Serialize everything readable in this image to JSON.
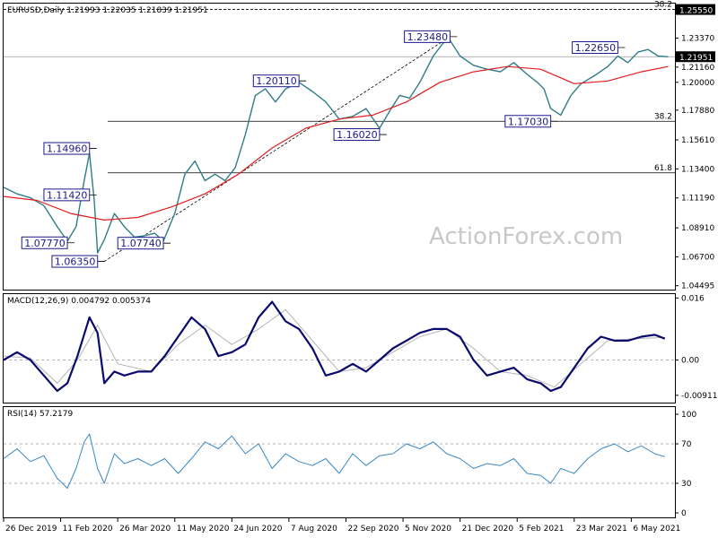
{
  "chart_data": {
    "type": "line",
    "main": {
      "header": "EURUSD,Daily  1.21993 1.22035 1.21839 1.21951",
      "ylim": [
        1.042,
        1.26
      ],
      "yticks": [
        "1.25550",
        "1.23370",
        "1.21160",
        "1.20000",
        "1.17880",
        "1.15610",
        "1.13400",
        "1.11190",
        "1.08910",
        "1.06700",
        "1.04495"
      ],
      "ytick_values": [
        1.2555,
        1.2337,
        1.2116,
        1.2,
        1.1788,
        1.1561,
        1.134,
        1.1119,
        1.0891,
        1.067,
        1.04495
      ],
      "last_price": "1.21951",
      "last_value": 1.21951,
      "level_price": "1.25550",
      "level_value": 1.2555,
      "fib_levels": [
        {
          "label": "38.2",
          "value": 1.2555,
          "start": 0.0
        },
        {
          "label": "38.2",
          "value": 1.1703,
          "start": 0.155
        },
        {
          "label": "61.8",
          "value": 1.131,
          "start": 0.155
        }
      ],
      "annotations": [
        {
          "text": "1.14960",
          "t": 0.128,
          "value": 1.1496,
          "pos": "left"
        },
        {
          "text": "1.11420",
          "t": 0.128,
          "value": 1.1142,
          "pos": "left"
        },
        {
          "text": "1.07770",
          "t": 0.095,
          "value": 1.0777,
          "pos": "left"
        },
        {
          "text": "1.06350",
          "t": 0.14,
          "value": 1.0635,
          "pos": "left"
        },
        {
          "text": "1.07740",
          "t": 0.238,
          "value": 1.0774,
          "pos": "left"
        },
        {
          "text": "1.20110",
          "t": 0.44,
          "value": 1.2011,
          "pos": "left"
        },
        {
          "text": "1.16020",
          "t": 0.56,
          "value": 1.1602,
          "pos": "left"
        },
        {
          "text": "1.23480",
          "t": 0.665,
          "value": 1.2348,
          "pos": "left"
        },
        {
          "text": "1.17030",
          "t": 0.815,
          "value": 1.1703,
          "pos": "left"
        },
        {
          "text": "1.22650",
          "t": 0.915,
          "value": 1.2265,
          "pos": "left"
        }
      ],
      "trendline": {
        "from": {
          "t": 0.15,
          "value": 1.0635
        },
        "to": {
          "t": 0.665,
          "value": 1.2348
        }
      },
      "watermark": "ActionForex.com",
      "price_series": {
        "t": [
          0.0,
          0.02,
          0.04,
          0.06,
          0.08,
          0.095,
          0.108,
          0.12,
          0.128,
          0.135,
          0.14,
          0.15,
          0.165,
          0.18,
          0.195,
          0.21,
          0.225,
          0.238,
          0.255,
          0.27,
          0.285,
          0.3,
          0.315,
          0.33,
          0.345,
          0.36,
          0.375,
          0.39,
          0.405,
          0.42,
          0.44,
          0.46,
          0.48,
          0.5,
          0.52,
          0.54,
          0.56,
          0.575,
          0.59,
          0.605,
          0.62,
          0.64,
          0.655,
          0.665,
          0.68,
          0.7,
          0.72,
          0.74,
          0.76,
          0.78,
          0.795,
          0.805,
          0.815,
          0.83,
          0.845,
          0.86,
          0.88,
          0.9,
          0.915,
          0.93,
          0.945,
          0.96,
          0.975,
          0.99
        ],
        "values": [
          1.12,
          1.115,
          1.112,
          1.106,
          1.09,
          1.079,
          1.09,
          1.125,
          1.146,
          1.11,
          1.07,
          1.08,
          1.1,
          1.09,
          1.082,
          1.083,
          1.085,
          1.079,
          1.1,
          1.13,
          1.14,
          1.125,
          1.13,
          1.125,
          1.135,
          1.16,
          1.19,
          1.195,
          1.185,
          1.195,
          1.2,
          1.193,
          1.185,
          1.172,
          1.174,
          1.18,
          1.165,
          1.178,
          1.19,
          1.188,
          1.2,
          1.22,
          1.23,
          1.232,
          1.22,
          1.213,
          1.21,
          1.208,
          1.215,
          1.206,
          1.2,
          1.195,
          1.18,
          1.175,
          1.19,
          1.199,
          1.205,
          1.212,
          1.22,
          1.215,
          1.223,
          1.225,
          1.22,
          1.2195
        ]
      },
      "ma_series": {
        "t": [
          0.0,
          0.05,
          0.1,
          0.15,
          0.2,
          0.25,
          0.3,
          0.35,
          0.4,
          0.45,
          0.5,
          0.55,
          0.6,
          0.65,
          0.7,
          0.75,
          0.8,
          0.85,
          0.9,
          0.95,
          0.99
        ],
        "values": [
          1.113,
          1.11,
          1.1,
          1.095,
          1.097,
          1.105,
          1.115,
          1.13,
          1.15,
          1.165,
          1.172,
          1.175,
          1.185,
          1.2,
          1.208,
          1.212,
          1.21,
          1.199,
          1.201,
          1.208,
          1.212
        ]
      }
    },
    "macd": {
      "header": "MACD(12,26,9) 0.004792 0.005374",
      "ylim": [
        -0.011,
        0.017
      ],
      "yticks": [
        "0.016",
        "0.00",
        "-0.009116"
      ],
      "ytick_values": [
        0.016,
        0.0,
        -0.009116
      ],
      "macd_series": {
        "t": [
          0.0,
          0.02,
          0.04,
          0.06,
          0.08,
          0.095,
          0.11,
          0.128,
          0.14,
          0.15,
          0.165,
          0.18,
          0.2,
          0.22,
          0.24,
          0.26,
          0.28,
          0.3,
          0.32,
          0.34,
          0.36,
          0.38,
          0.4,
          0.42,
          0.44,
          0.46,
          0.48,
          0.5,
          0.52,
          0.54,
          0.56,
          0.58,
          0.6,
          0.62,
          0.64,
          0.66,
          0.68,
          0.7,
          0.72,
          0.74,
          0.76,
          0.78,
          0.8,
          0.815,
          0.83,
          0.85,
          0.87,
          0.89,
          0.91,
          0.93,
          0.95,
          0.97,
          0.985
        ],
        "values": [
          0.0,
          0.002,
          0.0,
          -0.004,
          -0.008,
          -0.006,
          0.001,
          0.011,
          0.007,
          -0.006,
          -0.003,
          -0.004,
          -0.003,
          -0.003,
          0.001,
          0.006,
          0.011,
          0.008,
          0.001,
          0.002,
          0.004,
          0.011,
          0.015,
          0.01,
          0.008,
          0.003,
          -0.004,
          -0.003,
          -0.001,
          -0.003,
          0.0,
          0.003,
          0.005,
          0.007,
          0.008,
          0.008,
          0.006,
          0.0,
          -0.004,
          -0.003,
          -0.002,
          -0.005,
          -0.006,
          -0.008,
          -0.007,
          -0.002,
          0.003,
          0.006,
          0.005,
          0.005,
          0.006,
          0.0065,
          0.0055
        ]
      },
      "signal_series": {
        "t": [
          0.0,
          0.04,
          0.08,
          0.11,
          0.14,
          0.17,
          0.22,
          0.26,
          0.3,
          0.34,
          0.38,
          0.42,
          0.46,
          0.5,
          0.54,
          0.58,
          0.62,
          0.66,
          0.7,
          0.74,
          0.78,
          0.82,
          0.86,
          0.9,
          0.94,
          0.985
        ],
        "values": [
          0.001,
          0.0005,
          -0.006,
          0.0,
          0.009,
          -0.001,
          -0.003,
          0.004,
          0.009,
          0.004,
          0.008,
          0.013,
          0.005,
          -0.003,
          -0.002,
          0.002,
          0.006,
          0.008,
          0.003,
          -0.003,
          -0.004,
          -0.007,
          -0.001,
          0.005,
          0.0055,
          0.0058
        ]
      }
    },
    "rsi": {
      "header": "RSI(14) 57.2179",
      "ylim": [
        0,
        100
      ],
      "yticks": [
        "100",
        "70",
        "30",
        "0"
      ],
      "ytick_values": [
        100,
        70,
        30,
        0
      ],
      "levels": [
        70,
        30
      ],
      "rsi_series": {
        "t": [
          0.0,
          0.02,
          0.04,
          0.06,
          0.08,
          0.095,
          0.108,
          0.12,
          0.128,
          0.14,
          0.15,
          0.165,
          0.18,
          0.2,
          0.22,
          0.24,
          0.26,
          0.28,
          0.3,
          0.32,
          0.34,
          0.36,
          0.38,
          0.4,
          0.42,
          0.44,
          0.46,
          0.48,
          0.5,
          0.52,
          0.54,
          0.56,
          0.58,
          0.6,
          0.62,
          0.64,
          0.66,
          0.68,
          0.7,
          0.72,
          0.74,
          0.76,
          0.78,
          0.8,
          0.815,
          0.83,
          0.85,
          0.87,
          0.89,
          0.91,
          0.93,
          0.95,
          0.97,
          0.985
        ],
        "values": [
          55,
          65,
          52,
          58,
          35,
          25,
          45,
          72,
          80,
          45,
          30,
          60,
          50,
          55,
          48,
          55,
          40,
          55,
          72,
          65,
          78,
          60,
          70,
          45,
          60,
          52,
          48,
          55,
          40,
          60,
          48,
          58,
          60,
          70,
          65,
          72,
          60,
          55,
          45,
          50,
          48,
          55,
          40,
          38,
          30,
          45,
          40,
          55,
          65,
          70,
          62,
          68,
          60,
          57
        ]
      }
    },
    "xticks": [
      "26 Dec 2019",
      "11 Feb 2020",
      "26 Mar 2020",
      "11 May 2020",
      "24 Jun 2020",
      "7 Aug 2020",
      "22 Sep 2020",
      "5 Nov 2020",
      "21 Dec 2020",
      "5 Feb 2021",
      "23 Mar 2021",
      "6 May 2021"
    ],
    "xtick_t": [
      0.0,
      0.085,
      0.17,
      0.255,
      0.34,
      0.425,
      0.51,
      0.595,
      0.68,
      0.765,
      0.85,
      0.935
    ],
    "colors": {
      "price": "#2e7d87",
      "ma": "#e11d1d",
      "macd": "#0a0a6e",
      "signal": "#b4b4b4",
      "rsi": "#3a88c4",
      "annotation": "#1a1a8c",
      "grid": "#9a9a9a"
    }
  }
}
